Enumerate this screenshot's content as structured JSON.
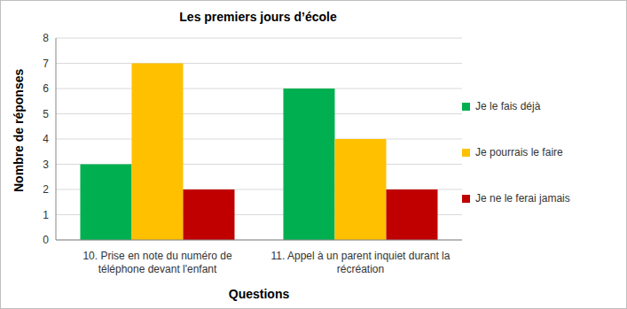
{
  "chart_data": {
    "type": "bar",
    "title": "Les premiers jours d’école",
    "x_label": "Questions",
    "y_label": "Nombre de réponses",
    "categories": [
      "10. Prise en note du numéro de téléphone devant l'enfant",
      "11. Appel à un parent inquiet durant la récréation"
    ],
    "series": [
      {
        "name": "Je le fais déjà",
        "color": "#00b050",
        "values": [
          3,
          6
        ]
      },
      {
        "name": "Je pourrais le faire",
        "color": "#ffc000",
        "values": [
          7,
          4
        ]
      },
      {
        "name": "Je ne le ferai jamais",
        "color": "#c00000",
        "values": [
          2,
          2
        ]
      }
    ],
    "ylim": [
      0,
      8
    ],
    "yticks": [
      0,
      1,
      2,
      3,
      4,
      5,
      6,
      7,
      8
    ],
    "grid": true,
    "legend": "right"
  }
}
